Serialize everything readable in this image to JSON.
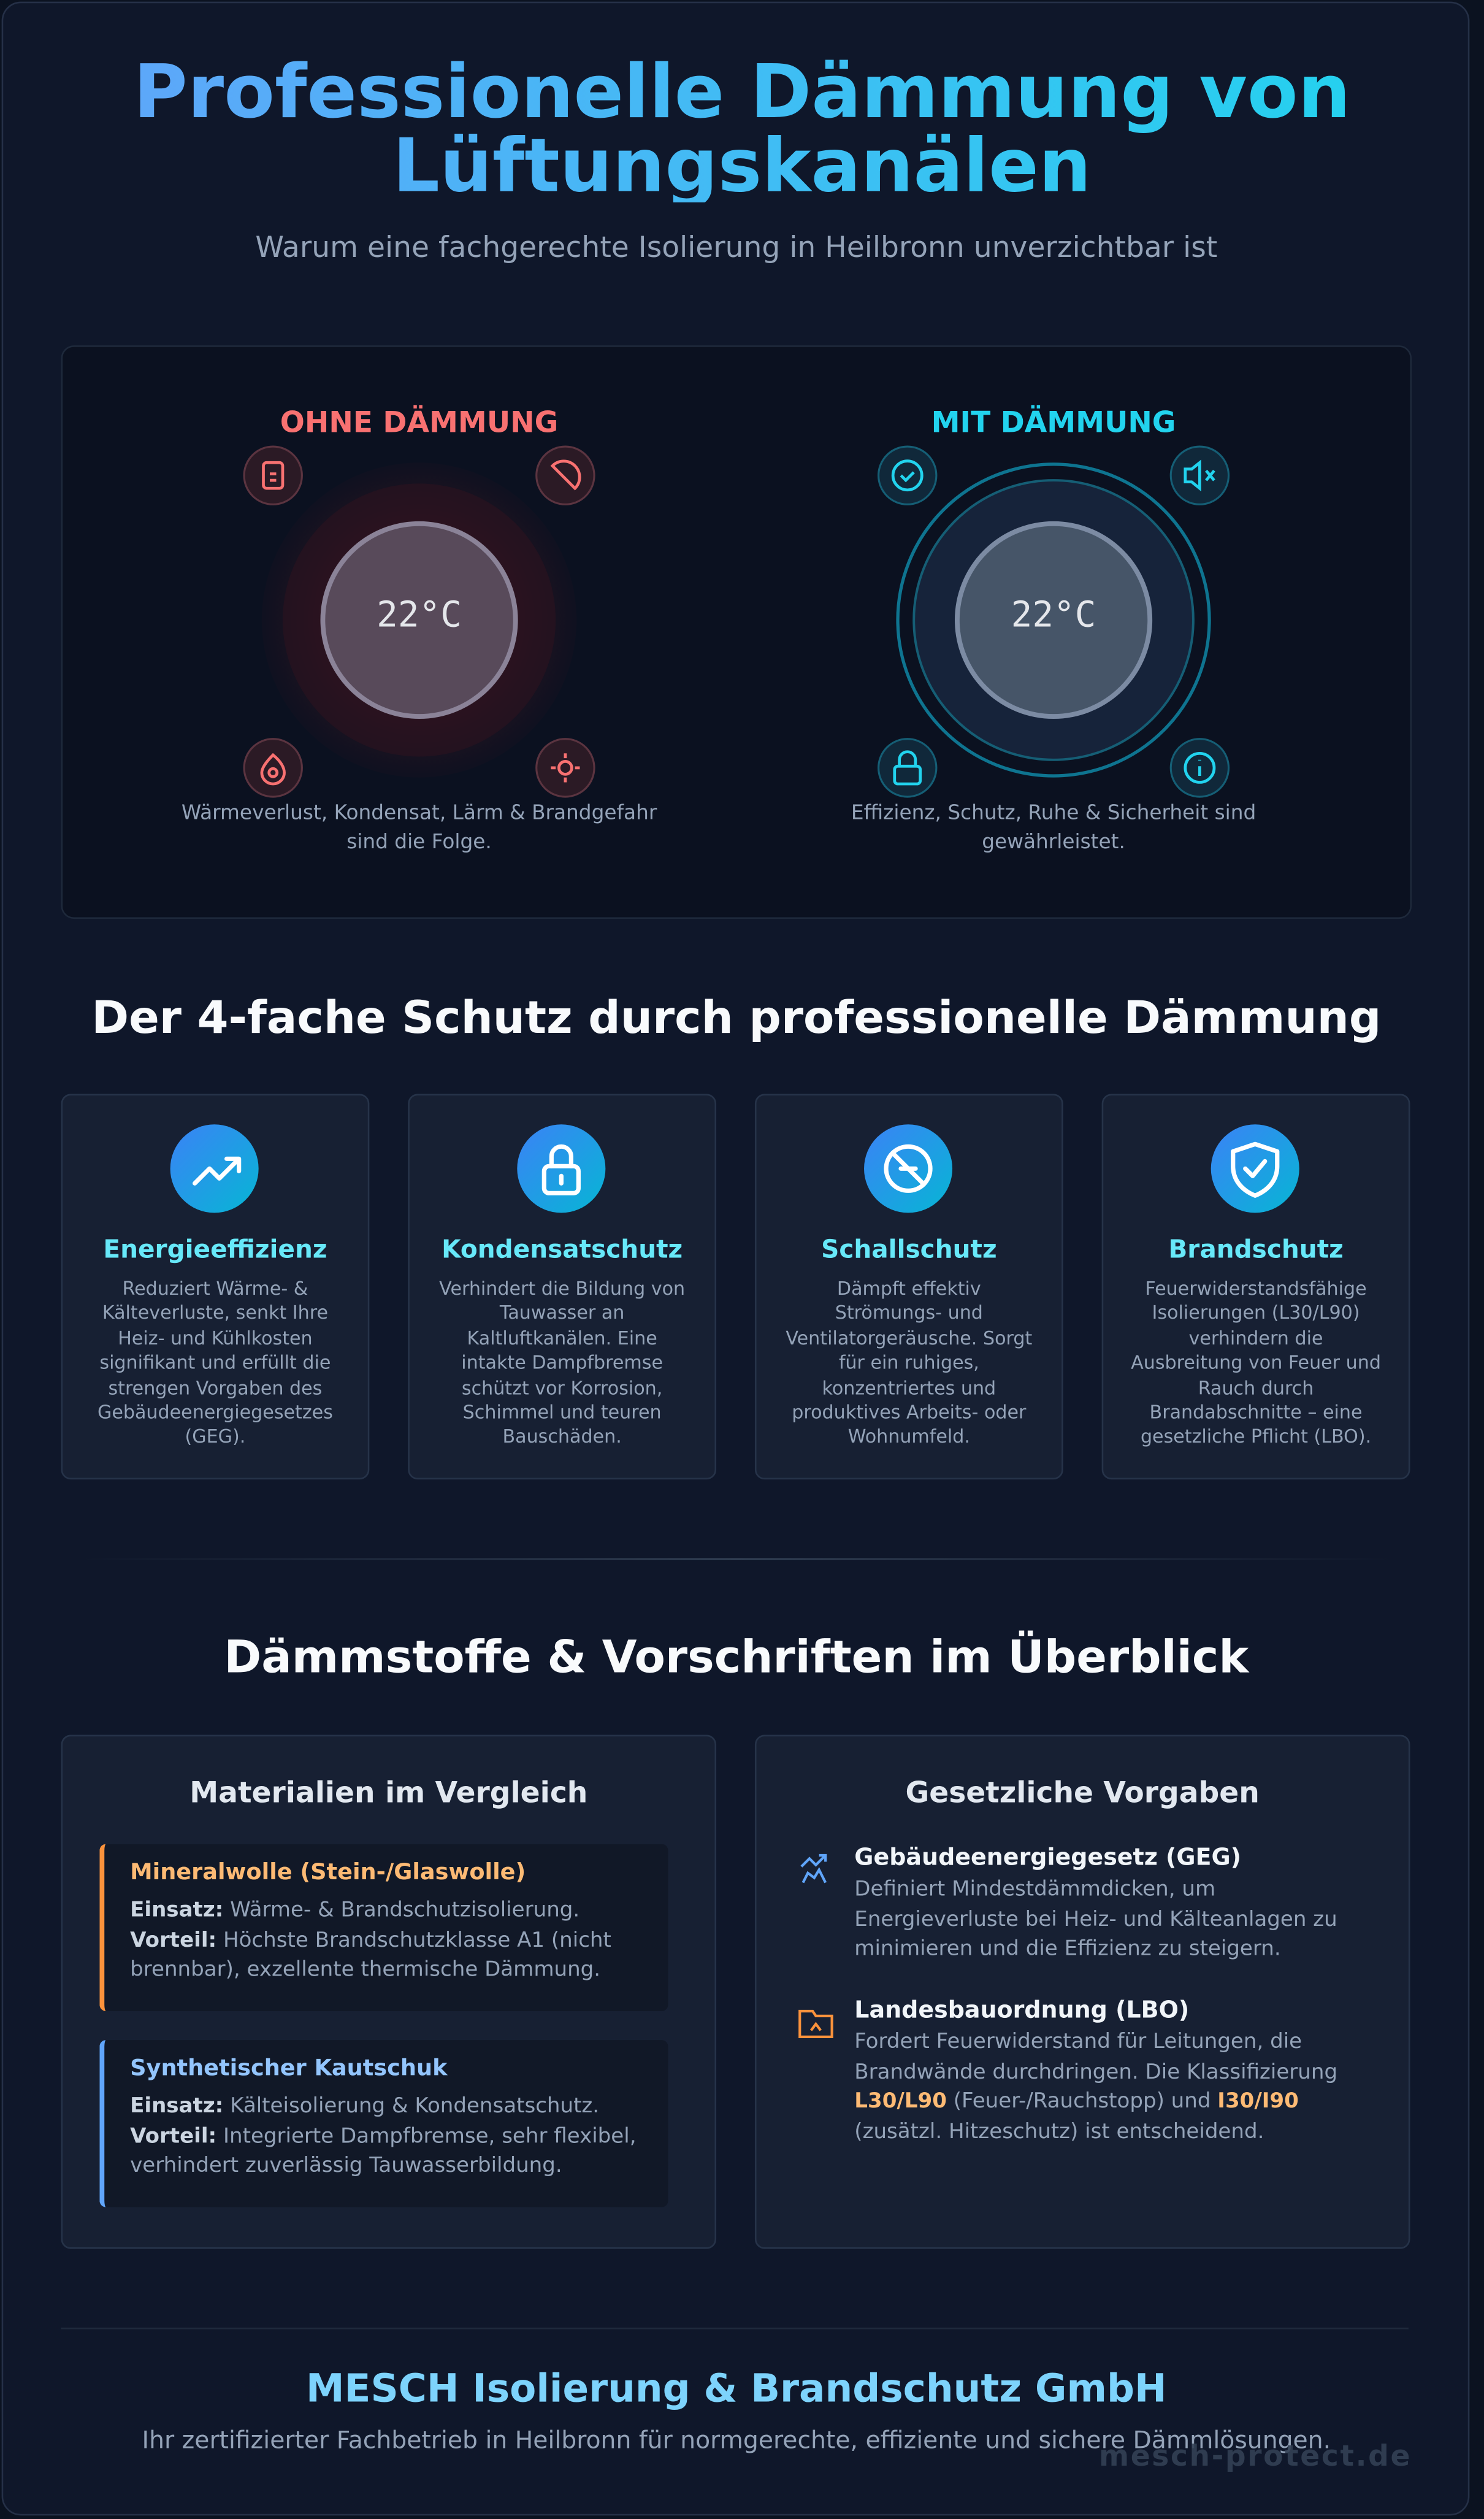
{
  "header": {
    "title": "Professionelle Dämmung von Lüftungskanälen",
    "subtitle": "Warum eine fachgerechte Isolierung in Heilbronn unverzichtbar ist"
  },
  "comparison": {
    "without": {
      "heading": "OHNE DÄMMUNG",
      "temperature": "22°C",
      "caption": "Wärmeverlust, Kondensat, Lärm & Brandgefahr sind die Folge."
    },
    "with": {
      "heading": "MIT DÄMMUNG",
      "temperature": "22°C",
      "caption": "Effizienz, Schutz, Ruhe & Sicherheit sind gewährleistet."
    }
  },
  "protection": {
    "title": "Der 4-fache Schutz durch professionelle Dämmung",
    "cards": [
      {
        "title": "Energieeffizienz",
        "text": "Reduziert Wärme- & Kälteverluste, senkt Ihre Heiz- und Kühlkosten signifikant und erfüllt die strengen Vorgaben des Gebäudeenergiegesetzes (GEG)."
      },
      {
        "title": "Kondensatschutz",
        "text": "Verhindert die Bildung von Tauwasser an Kaltluftkanälen. Eine intakte Dampfbremse schützt vor Korrosion, Schimmel und teuren Bauschäden."
      },
      {
        "title": "Schallschutz",
        "text": "Dämpft effektiv Strömungs- und Ventilatorgeräusche. Sorgt für ein ruhiges, konzentriertes und produktives Arbeits- oder Wohnumfeld."
      },
      {
        "title": "Brandschutz",
        "text": "Feuerwiderstandsfähige Isolierungen (L30/L90) verhindern die Ausbreitung von Feuer und Rauch durch Brandabschnitte – eine gesetzliche Pflicht (LBO)."
      }
    ]
  },
  "overview": {
    "title": "Dämmstoffe & Vorschriften im Überblick",
    "materials": {
      "title": "Materialien im Vergleich",
      "items": [
        {
          "name": "Mineralwolle (Stein-/Glaswolle)",
          "usage_label": "Einsatz:",
          "usage": "Wärme- & Brandschutzisolierung.",
          "benefit_label": "Vorteil:",
          "benefit": "Höchste Brandschutzklasse A1 (nicht brennbar), exzellente thermische Dämmung."
        },
        {
          "name": "Synthetischer Kautschuk",
          "usage_label": "Einsatz:",
          "usage": "Kälteisolierung & Kondensatschutz.",
          "benefit_label": "Vorteil:",
          "benefit": "Integrierte Dampfbremse, sehr flexibel, verhindert zuverlässig Tauwasserbildung."
        }
      ]
    },
    "regulations": {
      "title": "Gesetzliche Vorgaben",
      "items": [
        {
          "title": "Gebäudeenergiegesetz (GEG)",
          "text_parts": [
            "Definiert Mindestdämmdicken, um Energieverluste bei Heiz- und Kälteanlagen zu minimieren und die Effizienz zu steigern."
          ]
        },
        {
          "title": "Landesbauordnung (LBO)",
          "text_parts": [
            "Fordert Feuerwiderstand für Leitungen, die Brandwände durchdringen. Die Klassifizierung ",
            "L30/L90",
            " (Feuer-/Rauchstopp) und ",
            "I30/I90",
            " (zusätzl. Hitzeschutz) ist entscheidend."
          ]
        }
      ]
    }
  },
  "footer": {
    "company": "MESCH Isolierung & Brandschutz GmbH",
    "tagline": "Ihr zertifizierter Fachbetrieb in Heilbronn für normgerechte, effiziente und sichere Dämmlösungen.",
    "watermark": "mesch-protect.de"
  }
}
